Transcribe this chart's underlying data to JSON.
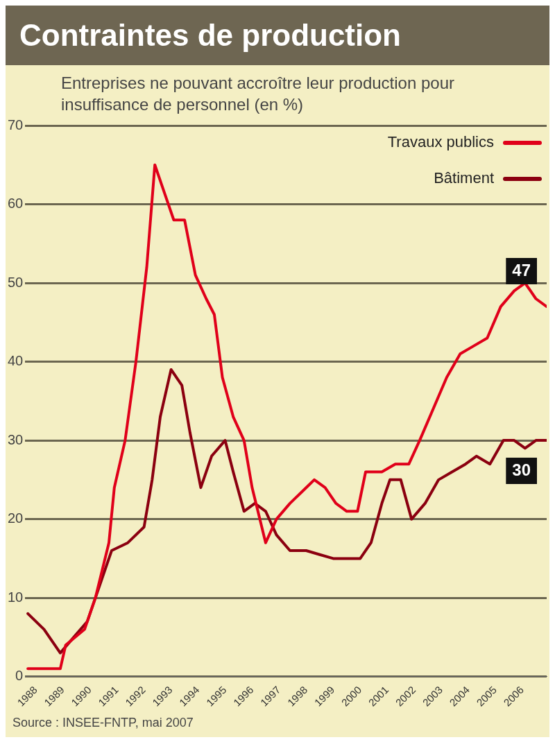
{
  "chart_data": {
    "type": "line",
    "title": "Contraintes de production",
    "subtitle": "Entreprises ne pouvant accroître leur production pour insuffisance de personnel (en %)",
    "series": [
      {
        "name": "Travaux publics",
        "color": "#e0001a",
        "x": [
          1987.7,
          1988.9,
          1989.1,
          1989.8,
          1990.2,
          1990.7,
          1990.9,
          1991.3,
          1991.7,
          1992.1,
          1992.4,
          1992.7,
          1993.1,
          1993.5,
          1993.9,
          1994.3,
          1994.6,
          1994.9,
          1995.3,
          1995.7,
          1996.0,
          1996.5,
          1996.9,
          1997.4,
          1998.0,
          1998.3,
          1998.7,
          1999.1,
          1999.5,
          1999.9,
          2000.2,
          2000.8,
          2001.3,
          2001.8,
          2002.2,
          2002.7,
          2003.2,
          2003.7,
          2004.2,
          2004.7,
          2005.2,
          2005.7,
          2006.1,
          2006.5,
          2006.9
        ],
        "values": [
          1,
          1,
          4,
          6,
          10,
          17,
          24,
          30,
          40,
          52,
          65,
          62,
          58,
          58,
          51,
          48,
          46,
          38,
          33,
          30,
          24,
          17,
          20,
          22,
          24,
          25,
          24,
          22,
          21,
          21,
          26,
          26,
          27,
          27,
          30,
          34,
          38,
          41,
          42,
          43,
          47,
          49,
          50,
          48,
          47
        ]
      },
      {
        "name": "Bâtiment",
        "color": "#8b0010",
        "x": [
          1987.7,
          1988.3,
          1988.9,
          1989.4,
          1989.9,
          1990.3,
          1990.8,
          1991.4,
          1992.0,
          1992.3,
          1992.6,
          1993.0,
          1993.4,
          1993.7,
          1994.1,
          1994.5,
          1995.0,
          1995.3,
          1995.7,
          1996.1,
          1996.5,
          1996.9,
          1997.4,
          1998.0,
          1998.5,
          1999.0,
          1999.5,
          2000.0,
          2000.4,
          2000.8,
          2001.1,
          2001.5,
          2001.9,
          2002.4,
          2002.9,
          2003.4,
          2003.9,
          2004.3,
          2004.8,
          2005.3,
          2005.7,
          2006.1,
          2006.5,
          2006.9
        ],
        "values": [
          8,
          6,
          3,
          5,
          7,
          11,
          16,
          17,
          19,
          25,
          33,
          39,
          37,
          31,
          24,
          28,
          30,
          26,
          21,
          22,
          21,
          18,
          16,
          16,
          15.5,
          15,
          15,
          15,
          17,
          22,
          25,
          25,
          20,
          22,
          25,
          26,
          27,
          28,
          27,
          30,
          30,
          29,
          30,
          30
        ]
      }
    ],
    "xlim": [
      1987.6,
      2006.9
    ],
    "xticks": [
      1988,
      1989,
      1990,
      1991,
      1992,
      1993,
      1994,
      1995,
      1996,
      1997,
      1998,
      1999,
      2000,
      2001,
      2002,
      2003,
      2004,
      2005,
      2006
    ],
    "ylim": [
      0,
      70
    ],
    "yticks": [
      0,
      10,
      20,
      30,
      40,
      50,
      60,
      70
    ],
    "grid": "y",
    "legend": "top right",
    "line_style": "solid",
    "marker": "none",
    "annotations": [
      {
        "text": "47",
        "x": 2006.9,
        "y": 47
      },
      {
        "text": "30",
        "x": 2006.9,
        "y": 30
      },
      "Source : INSEE-FNTP, mai 2007"
    ]
  }
}
